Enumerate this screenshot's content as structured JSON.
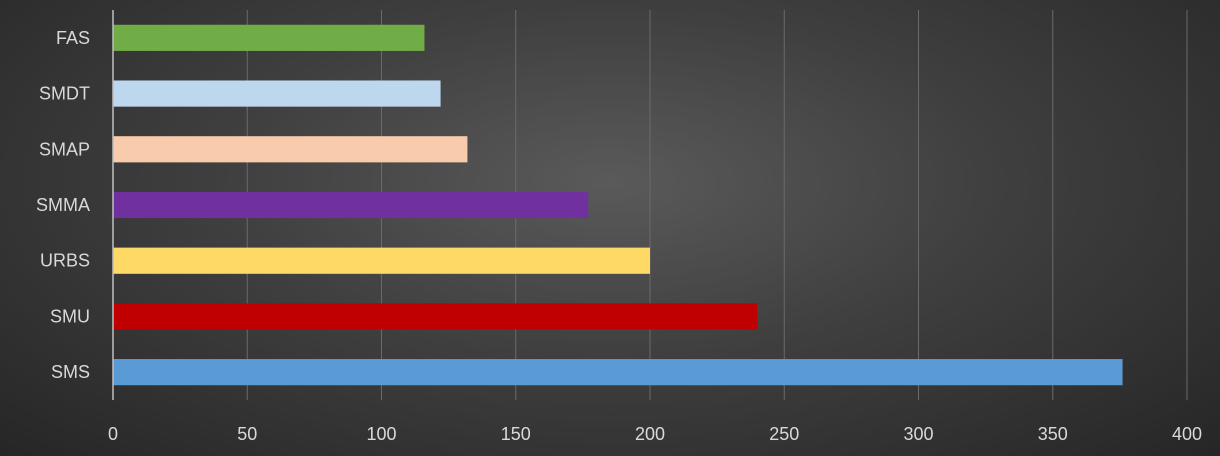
{
  "chart_data": {
    "type": "bar",
    "orientation": "horizontal",
    "categories": [
      "SMS",
      "SMU",
      "URBS",
      "SMMA",
      "SMAP",
      "SMDT",
      "FAS"
    ],
    "values": [
      376,
      240,
      200,
      177,
      132,
      122,
      116
    ],
    "colors": [
      "#5b9bd5",
      "#c00000",
      "#ffd966",
      "#7030a0",
      "#f8cbad",
      "#bdd7ee",
      "#70ad47"
    ],
    "xlim": [
      0,
      400
    ],
    "xticks": [
      "0",
      "50",
      "100",
      "150",
      "200",
      "250",
      "300",
      "350",
      "400"
    ],
    "grid": true,
    "title": "",
    "xlabel": "",
    "ylabel": ""
  }
}
